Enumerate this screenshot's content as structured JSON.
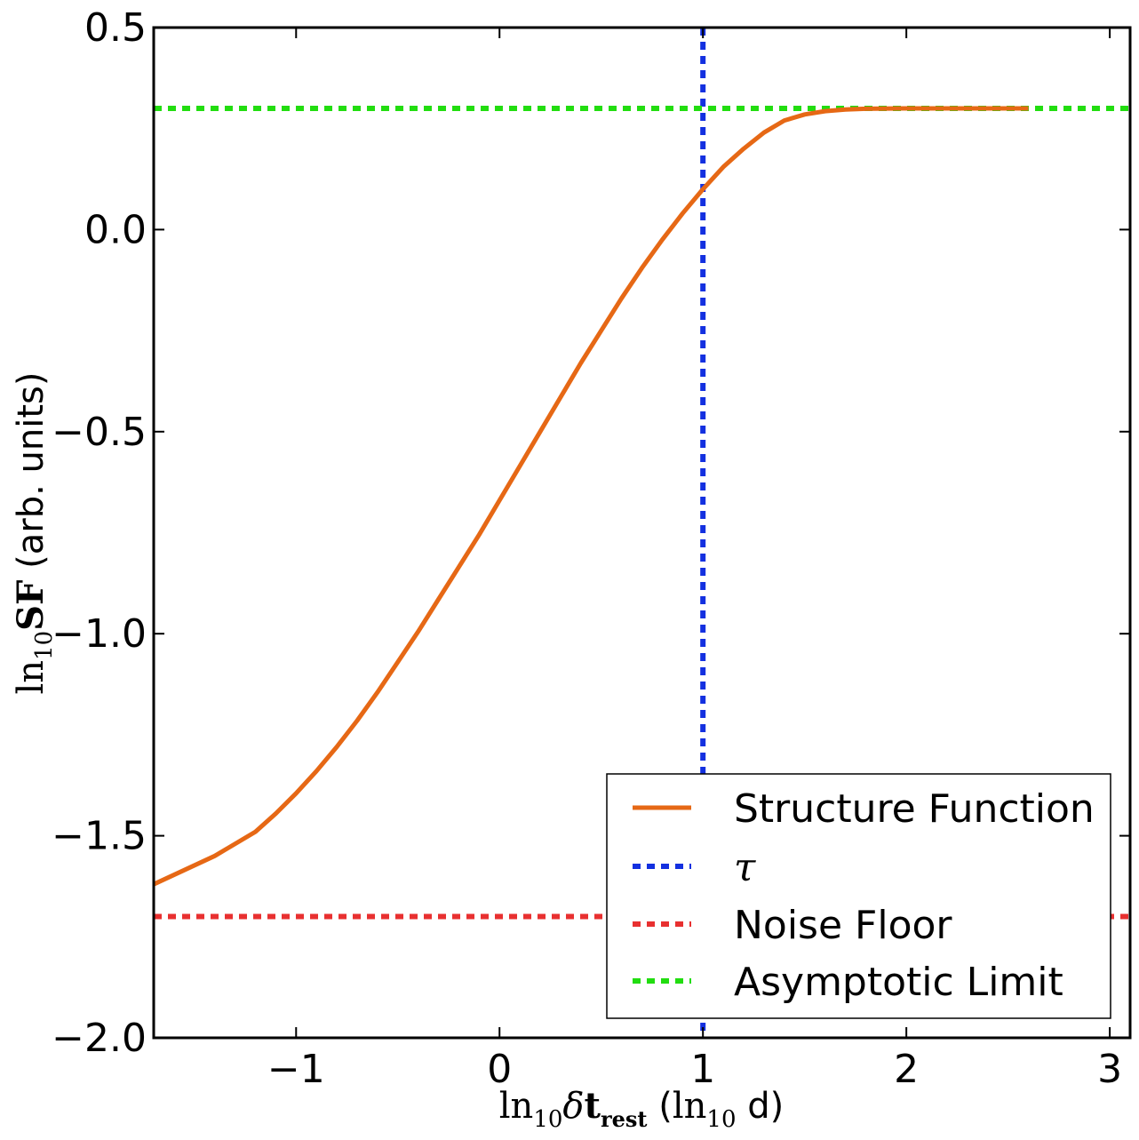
{
  "chart_data": {
    "type": "line",
    "xlabel": "ln₁₀δt_rest (ln₁₀ d)",
    "ylabel": "ln₁₀SF (arb. units)",
    "xlim": [
      -1.7,
      3.1
    ],
    "ylim": [
      -2.0,
      0.5
    ],
    "xticks": [
      -1,
      0,
      1,
      2,
      3
    ],
    "yticks": [
      0.5,
      0.0,
      -0.5,
      -1.0,
      -1.5,
      -2.0
    ],
    "xtick_labels": [
      "−1",
      "0",
      "1",
      "2",
      "3"
    ],
    "ytick_labels": [
      "0.5",
      "0.0",
      "−0.5",
      "−1.0",
      "−1.5",
      "−2.0"
    ],
    "grid": false,
    "legend_position": "lower-right",
    "series": [
      {
        "name": "Structure Function",
        "style": "solid",
        "color": "#e66815",
        "x": [
          -1.7,
          -1.4,
          -1.2,
          -1.1,
          -1.0,
          -0.9,
          -0.8,
          -0.7,
          -0.6,
          -0.5,
          -0.4,
          -0.3,
          -0.2,
          -0.1,
          0.0,
          0.1,
          0.2,
          0.3,
          0.4,
          0.5,
          0.6,
          0.7,
          0.8,
          0.9,
          1.0,
          1.1,
          1.2,
          1.3,
          1.4,
          1.5,
          1.6,
          1.7,
          1.8,
          2.0,
          2.3,
          2.6
        ],
        "y": [
          -1.62,
          -1.55,
          -1.49,
          -1.445,
          -1.395,
          -1.34,
          -1.28,
          -1.215,
          -1.145,
          -1.07,
          -0.995,
          -0.915,
          -0.835,
          -0.755,
          -0.67,
          -0.585,
          -0.5,
          -0.415,
          -0.33,
          -0.25,
          -0.17,
          -0.095,
          -0.025,
          0.04,
          0.1,
          0.155,
          0.2,
          0.24,
          0.27,
          0.285,
          0.293,
          0.297,
          0.299,
          0.3,
          0.3,
          0.3
        ]
      },
      {
        "name": "τ",
        "style": "dotted",
        "color": "#1330e0",
        "orientation": "vertical",
        "x_value": 1.0
      },
      {
        "name": "Noise Floor",
        "style": "dotted",
        "color": "#e83030",
        "orientation": "horizontal",
        "y_value": -1.7
      },
      {
        "name": "Asymptotic Limit",
        "style": "dotted",
        "color": "#22dd10",
        "orientation": "horizontal",
        "y_value": 0.3
      }
    ]
  }
}
